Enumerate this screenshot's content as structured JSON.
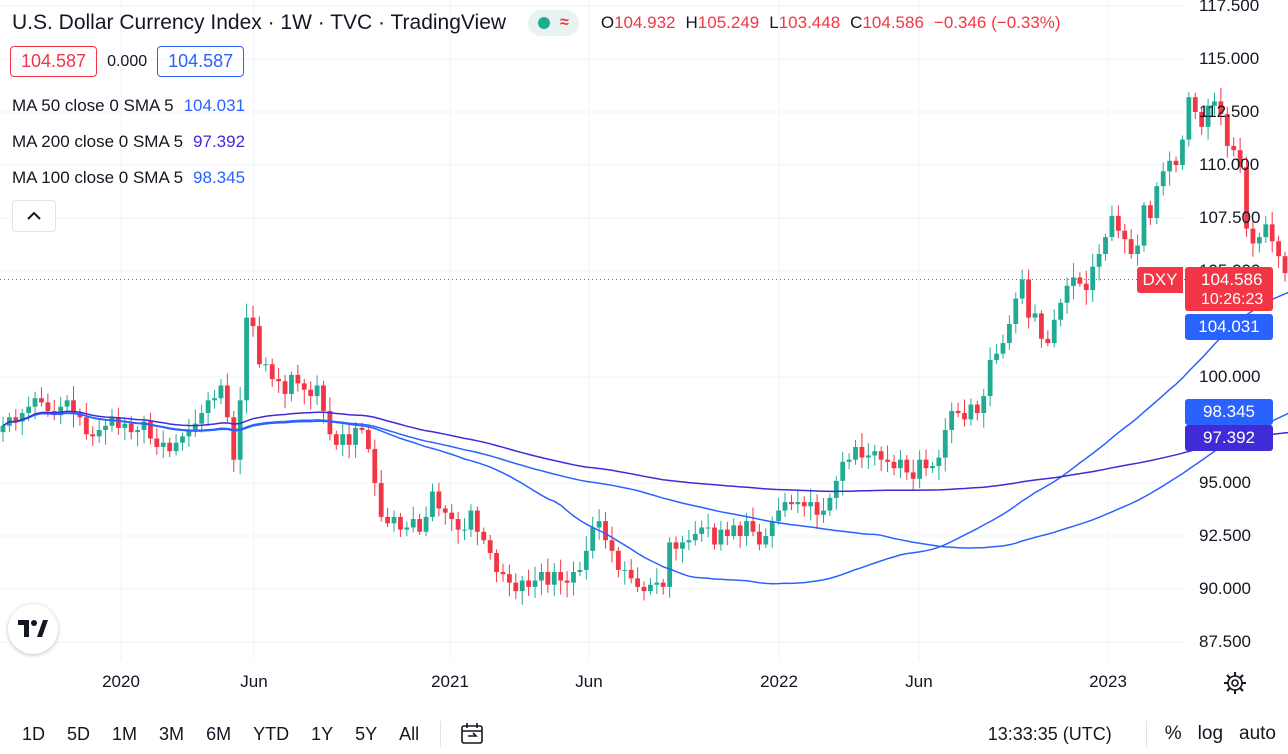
{
  "header": {
    "title": "U.S. Dollar Currency Index · 1W · TVC · TradingView",
    "wave_symbol": "≈",
    "ohlc": {
      "o_label": "O",
      "o_value": "104.932",
      "h_label": "H",
      "h_value": "105.249",
      "l_label": "L",
      "l_value": "103.448",
      "c_label": "C",
      "c_value": "104.586",
      "change": "−0.346 (−0.33%)"
    }
  },
  "quote": {
    "bid": "104.587",
    "spread": "0.000",
    "ask": "104.587"
  },
  "indicators": [
    {
      "label": "MA 50 close 0 SMA 5",
      "value": "104.031",
      "color": "#2962ff"
    },
    {
      "label": "MA 200 close 0 SMA 5",
      "value": "97.392",
      "color": "#3f2bd8"
    },
    {
      "label": "MA 100 close 0 SMA 5",
      "value": "98.345",
      "color": "#2962ff"
    }
  ],
  "price_axis": {
    "ticks": [
      "117.500",
      "115.000",
      "112.500",
      "110.000",
      "107.500",
      "105.000",
      "100.000",
      "95.000",
      "92.500",
      "90.000",
      "87.500"
    ],
    "symbol_tag": "DXY",
    "last_price": "104.586",
    "countdown": "10:26:23",
    "ma50_tag": "104.031",
    "ma100_tag": "98.345",
    "ma200_tag": "97.392"
  },
  "time_axis": [
    "2020",
    "Jun",
    "2021",
    "Jun",
    "2022",
    "Jun",
    "2023"
  ],
  "toolbar": {
    "timeframes": [
      "1D",
      "5D",
      "1M",
      "3M",
      "6M",
      "YTD",
      "1Y",
      "5Y",
      "All"
    ],
    "clock": "13:33:35 (UTC)",
    "percent": "%",
    "log": "log",
    "auto": "auto"
  },
  "colors": {
    "up": "#22ab94",
    "down": "#f23645",
    "ma50": "#2962ff",
    "ma100": "#2962ff",
    "ma200": "#3f2bd8"
  },
  "chart_data": {
    "type": "candlestick",
    "interval": "1W",
    "symbol": "DXY",
    "x_start": "2019-08-05",
    "ylim": [
      87.0,
      117.8
    ],
    "close": [
      97.7,
      98.1,
      97.9,
      98.3,
      98.6,
      99.0,
      98.8,
      98.4,
      98.2,
      98.6,
      98.9,
      98.3,
      98.1,
      97.3,
      97.2,
      97.5,
      97.7,
      98.1,
      97.6,
      97.8,
      97.4,
      97.5,
      97.9,
      97.1,
      96.7,
      96.9,
      96.5,
      96.9,
      97.2,
      97.5,
      97.8,
      98.3,
      98.9,
      99.0,
      99.6,
      98.1,
      96.1,
      98.9,
      102.8,
      102.4,
      100.6,
      100.6,
      99.9,
      99.8,
      99.2,
      100.1,
      99.7,
      99.4,
      99.1,
      99.6,
      98.4,
      97.3,
      96.8,
      97.3,
      96.8,
      97.6,
      97.5,
      96.6,
      95.0,
      93.4,
      93.1,
      93.4,
      92.8,
      92.9,
      93.3,
      92.7,
      93.4,
      94.6,
      93.8,
      93.6,
      93.3,
      92.8,
      92.8,
      93.7,
      92.7,
      92.3,
      91.7,
      90.8,
      90.7,
      90.3,
      89.9,
      90.4,
      90.1,
      90.4,
      90.8,
      90.2,
      90.8,
      90.4,
      90.3,
      90.8,
      90.9,
      91.8,
      92.9,
      93.2,
      92.3,
      91.8,
      90.9,
      90.9,
      90.5,
      90.1,
      89.9,
      90.2,
      90.3,
      90.1,
      92.2,
      91.9,
      92.2,
      92.3,
      92.6,
      92.9,
      92.9,
      92.1,
      92.8,
      92.5,
      93.0,
      92.5,
      93.2,
      92.7,
      92.1,
      92.5,
      93.2,
      93.7,
      94.1,
      94.0,
      94.1,
      93.9,
      94.1,
      93.5,
      93.7,
      94.3,
      95.1,
      96.0,
      96.1,
      96.7,
      96.2,
      96.3,
      96.5,
      96.1,
      96.0,
      95.7,
      96.1,
      95.5,
      95.2,
      96.1,
      95.7,
      95.8,
      96.2,
      97.5,
      98.4,
      98.3,
      98.0,
      98.7,
      98.3,
      99.1,
      100.8,
      101.1,
      101.6,
      102.5,
      103.7,
      104.6,
      102.8,
      103.0,
      101.8,
      101.6,
      102.7,
      103.5,
      104.3,
      104.7,
      104.4,
      104.1,
      105.2,
      105.8,
      106.6,
      107.6,
      106.9,
      106.5,
      105.8,
      106.2,
      108.1,
      107.5,
      109.0,
      109.7,
      110.2,
      110.0,
      111.2,
      113.2,
      112.5,
      111.8,
      112.8,
      113.0,
      112.4,
      110.9,
      110.7,
      109.9,
      107.0,
      106.3,
      106.6,
      107.2,
      106.4,
      105.7,
      104.9,
      104.6
    ],
    "ma50_end": 104.031,
    "ma100_end": 98.345,
    "ma200_end": 97.392,
    "last_high": 105.249,
    "last_low": 103.448
  }
}
